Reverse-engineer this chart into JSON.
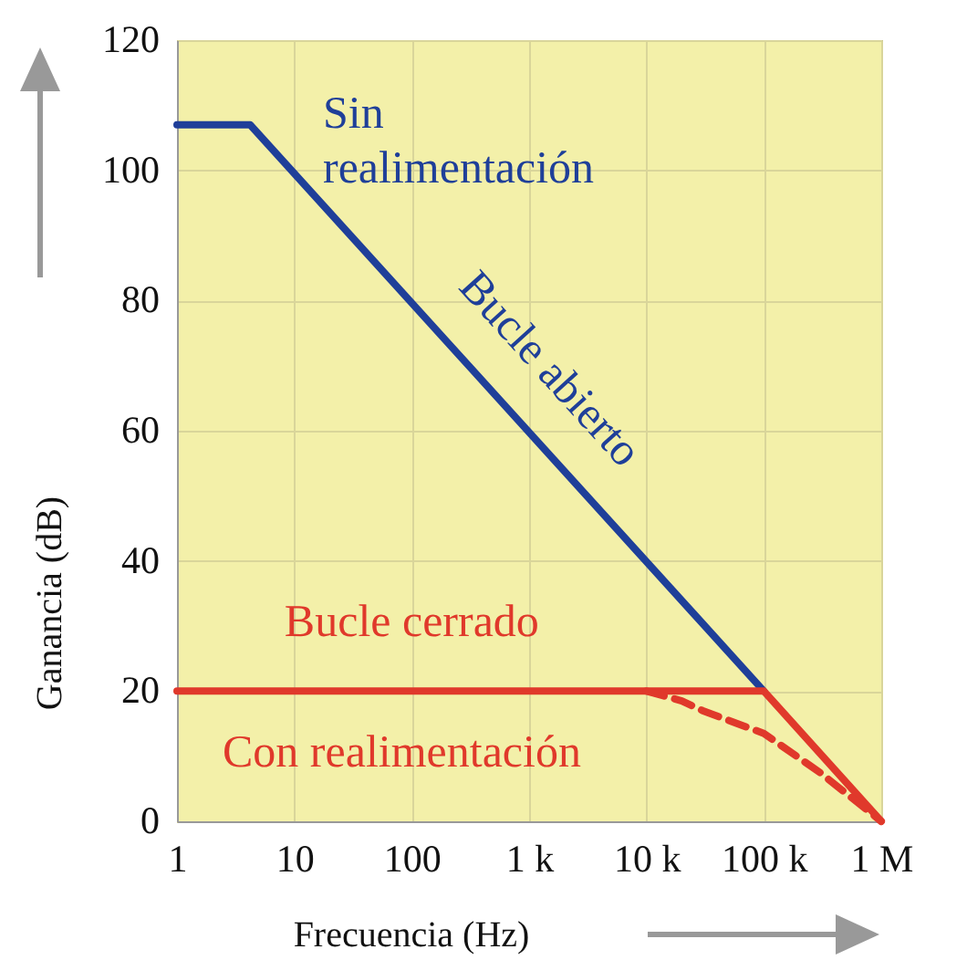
{
  "chart_data": {
    "type": "line",
    "xlabel": "Frecuencia (Hz)",
    "ylabel": "Ganancia (dB)",
    "log": "x",
    "grid": true,
    "marker": "none",
    "xlim": [
      1,
      1000000
    ],
    "ylim": [
      0,
      120
    ],
    "xticks": [
      {
        "value": 1,
        "label": "1"
      },
      {
        "value": 10,
        "label": "10"
      },
      {
        "value": 100,
        "label": "100"
      },
      {
        "value": 1000,
        "label": "1 k"
      },
      {
        "value": 10000,
        "label": "10 k"
      },
      {
        "value": 100000,
        "label": "100 k"
      },
      {
        "value": 1000000,
        "label": "1 M"
      }
    ],
    "yticks": [
      0,
      20,
      40,
      60,
      80,
      100,
      120
    ],
    "series": [
      {
        "name": "Bucle abierto",
        "color": "#1f3f99",
        "line_style": "solid",
        "x": [
          1,
          4.2,
          100000
        ],
        "values": [
          107,
          107,
          20
        ]
      },
      {
        "name": "Bucle cerrado",
        "color": "#e0392b",
        "line_style": "solid",
        "x": [
          1,
          100000,
          1000000
        ],
        "values": [
          20,
          20,
          0
        ]
      },
      {
        "color": "#e0392b",
        "line_style": "dashed",
        "x": [
          10000,
          20000,
          30000,
          100000,
          300000,
          1000000
        ],
        "values": [
          20,
          18.5,
          17,
          13.5,
          7.5,
          0
        ]
      }
    ],
    "annotations": [
      "Sin\nrealimentación",
      "Con realimentación"
    ]
  }
}
